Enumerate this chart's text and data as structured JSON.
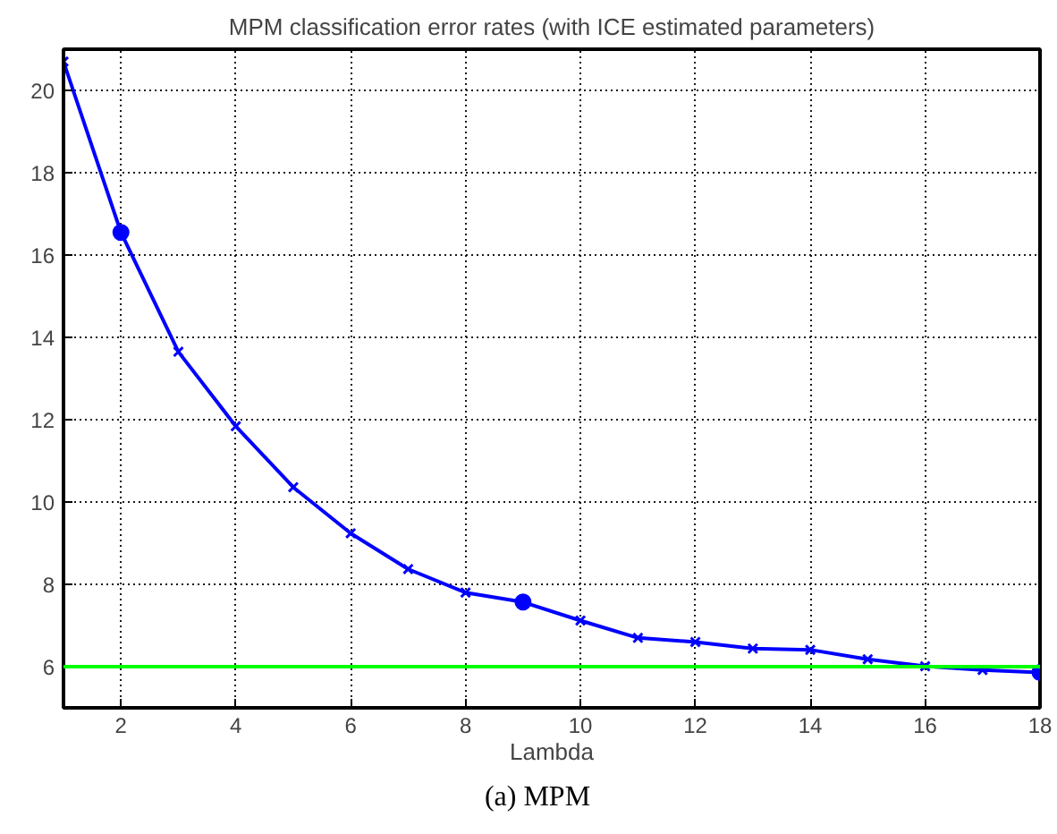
{
  "chart_data": {
    "type": "line",
    "title": "MPM classification error rates (with ICE estimated parameters)",
    "xlabel": "Lambda",
    "x": [
      1,
      2,
      3,
      4,
      5,
      6,
      7,
      8,
      9,
      10,
      11,
      12,
      13,
      14,
      15,
      16,
      17,
      18
    ],
    "series": [
      {
        "color": "#0000ff",
        "marker": "cross",
        "values": [
          20.7,
          16.55,
          13.65,
          11.84,
          10.36,
          9.24,
          8.37,
          7.8,
          7.57,
          7.12,
          6.7,
          6.6,
          6.44,
          6.41,
          6.18,
          6.01,
          5.92,
          5.86
        ]
      },
      {
        "type": "scatter",
        "color": "#0000ff",
        "marker": "circle",
        "x": [
          2,
          9,
          18
        ],
        "values": [
          16.55,
          7.57,
          5.86
        ]
      }
    ],
    "xlim": [
      1,
      18
    ],
    "ylim": [
      5,
      21
    ],
    "xticks": [
      2,
      4,
      6,
      8,
      10,
      12,
      14,
      16,
      18
    ],
    "yticks": [
      6,
      8,
      10,
      12,
      14,
      16,
      18,
      20
    ],
    "grid": true,
    "line_style": "solid",
    "ref_lines": [
      {
        "axis": "y",
        "value": 6,
        "color": "#00ff00"
      }
    ],
    "annotations": [
      "(a) MPM"
    ]
  }
}
